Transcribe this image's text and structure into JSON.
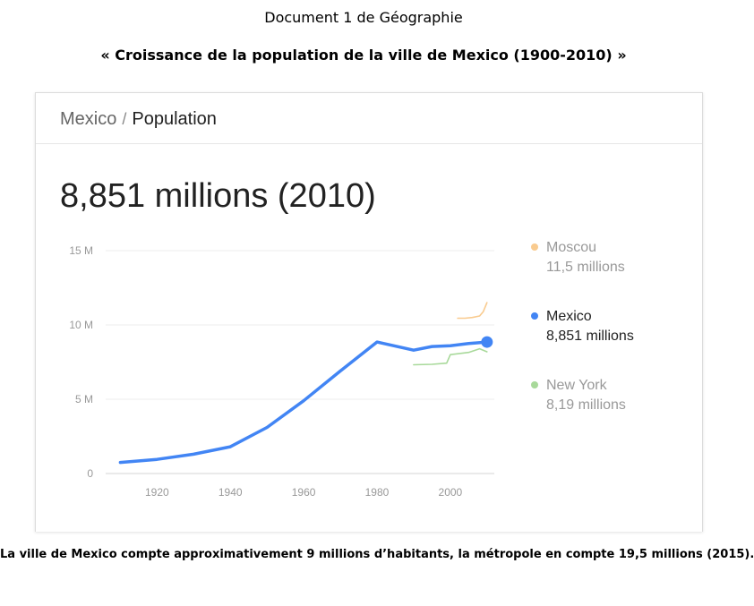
{
  "document": {
    "title": "Document 1 de Géographie",
    "subtitle": "« Croissance de la population de la ville de Mexico (1900-2010) »",
    "caption": "La ville de Mexico compte approximativement 9 millions d’habitants, la métropole en compte 19,5 millions (2015)."
  },
  "card": {
    "place": "Mexico",
    "separator": "/",
    "topic": "Population",
    "headline": "8,851 millions (2010)"
  },
  "chart_data": {
    "type": "line",
    "title": "",
    "xlabel": "",
    "ylabel": "",
    "xlim": [
      1906,
      2012
    ],
    "ylim": [
      0,
      15
    ],
    "grid": true,
    "legend_position": "right",
    "x_ticks": [
      {
        "value": 1920,
        "label": "1920"
      },
      {
        "value": 1940,
        "label": "1940"
      },
      {
        "value": 1960,
        "label": "1960"
      },
      {
        "value": 1980,
        "label": "1980"
      },
      {
        "value": 2000,
        "label": "2000"
      }
    ],
    "y_ticks": [
      {
        "value": 0,
        "label": "0"
      },
      {
        "value": 5,
        "label": "5 M"
      },
      {
        "value": 10,
        "label": "10 M"
      },
      {
        "value": 15,
        "label": "15 M"
      }
    ],
    "series": [
      {
        "name": "Moscou",
        "value_label": "11,5 millions",
        "color": "#f9cb8f",
        "x": [
          2002,
          2004,
          2006,
          2008,
          2009,
          2010
        ],
        "y": [
          10.45,
          10.45,
          10.5,
          10.6,
          10.9,
          11.5
        ]
      },
      {
        "name": "Mexico",
        "value_label": "8,851 millions",
        "color": "#4285f4",
        "highlight": true,
        "x": [
          1910,
          1920,
          1930,
          1940,
          1950,
          1960,
          1970,
          1980,
          1990,
          1995,
          2000,
          2005,
          2010
        ],
        "y": [
          0.75,
          0.95,
          1.3,
          1.8,
          3.1,
          4.9,
          6.9,
          8.85,
          8.3,
          8.55,
          8.6,
          8.75,
          8.85
        ]
      },
      {
        "name": "New York",
        "value_label": "8,19 millions",
        "color": "#a8d99a",
        "x": [
          1990,
          1995,
          1999,
          2000,
          2005,
          2008,
          2010
        ],
        "y": [
          7.32,
          7.35,
          7.43,
          8.0,
          8.15,
          8.4,
          8.19
        ]
      }
    ]
  }
}
